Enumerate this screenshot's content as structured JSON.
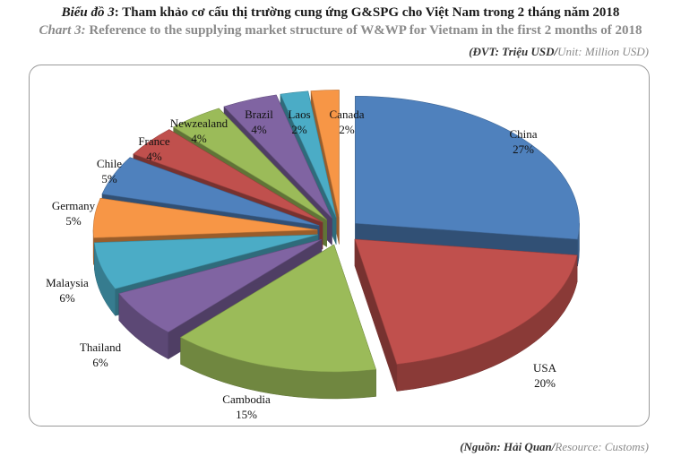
{
  "header": {
    "title_vn_label": "Biểu đồ 3",
    "title_vn_text": ": Tham khảo cơ cấu thị trường cung ứng G&SPG cho Việt Nam trong 2 tháng năm 2018",
    "title_en_label": "Chart 3:",
    "title_en_text": " Reference to the supplying market structure of W&WP for Vietnam in the first 2 months of 2018",
    "unit_vn": "(ĐVT: Triệu USD/",
    "unit_en": "Unit: Million USD)"
  },
  "footer": {
    "source_vn": "(Nguồn: Hải Quan/",
    "source_en": "Resource: Customs)"
  },
  "chart_data": {
    "type": "pie",
    "style": "3d-exploded",
    "title": "Reference to the supplying market structure of W&WP for Vietnam in the first 2 months of 2018",
    "unit": "Million USD",
    "categories": [
      "China",
      "USA",
      "Cambodia",
      "Thailand",
      "Malaysia",
      "Germany",
      "Chile",
      "France",
      "Newzealand",
      "Brazil",
      "Laos",
      "Canada"
    ],
    "values": [
      27,
      20,
      15,
      6,
      6,
      5,
      5,
      4,
      4,
      4,
      2,
      2
    ],
    "labels": [
      "27%",
      "20%",
      "15%",
      "6%",
      "6%",
      "5%",
      "5%",
      "4%",
      "4%",
      "4%",
      "2%",
      "2%"
    ],
    "colors": [
      "#4f81bd",
      "#c0504d",
      "#9bbb59",
      "#8064a2",
      "#4bacc6",
      "#f79646",
      "#4f81bd",
      "#c0504d",
      "#9bbb59",
      "#8064a2",
      "#4bacc6",
      "#f79646"
    ]
  }
}
